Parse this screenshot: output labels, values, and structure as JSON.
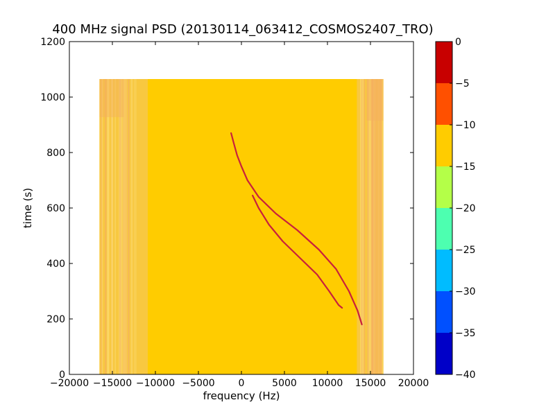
{
  "chart_data": {
    "type": "heatmap",
    "title": "400 MHz signal PSD (20130114_063412_COSMOS2407_TRO)",
    "xlabel": "frequency (Hz)",
    "ylabel": "time (s)",
    "xlim": [
      -20000,
      20000
    ],
    "ylim": [
      0,
      1200
    ],
    "xticks": [
      "−20000",
      "−15000",
      "−10000",
      "−5000",
      "0",
      "5000",
      "10000",
      "15000",
      "20000"
    ],
    "xtick_values": [
      -20000,
      -15000,
      -10000,
      -5000,
      0,
      5000,
      10000,
      15000,
      20000
    ],
    "yticks": [
      "0",
      "200",
      "400",
      "600",
      "800",
      "1000",
      "1200"
    ],
    "ytick_values": [
      0,
      200,
      400,
      600,
      800,
      1000,
      1200
    ],
    "data_extent": {
      "freq": [
        -16500,
        16500
      ],
      "time": [
        0,
        1065
      ]
    },
    "background_level_db": -12,
    "edge_level_db": -9,
    "signal_level_db": -2,
    "signal_tracks": [
      {
        "freq": [
          -1200,
          -900,
          -500,
          0,
          700,
          2000,
          4000,
          6500,
          9000,
          11000,
          12500,
          13500,
          14000
        ],
        "time": [
          870,
          835,
          790,
          750,
          700,
          640,
          580,
          520,
          450,
          380,
          300,
          230,
          180
        ]
      },
      {
        "freq": [
          1300,
          2000,
          3200,
          4800,
          6800,
          8800,
          10200,
          11300,
          11700
        ],
        "time": [
          645,
          600,
          540,
          480,
          420,
          360,
          300,
          250,
          240
        ]
      }
    ],
    "colorbar": {
      "min": -40,
      "max": 0,
      "ticks": [
        "0",
        "−5",
        "−10",
        "−15",
        "−20",
        "−25",
        "−30",
        "−35",
        "−40"
      ],
      "tick_values": [
        0,
        -5,
        -10,
        -15,
        -20,
        -25,
        -30,
        -35,
        -40
      ],
      "bands": [
        {
          "from": -40,
          "to": -35,
          "color": "#0000c8"
        },
        {
          "from": -35,
          "to": -30,
          "color": "#0050ff"
        },
        {
          "from": -30,
          "to": -25,
          "color": "#00bcff"
        },
        {
          "from": -25,
          "to": -20,
          "color": "#4dffb0"
        },
        {
          "from": -20,
          "to": -15,
          "color": "#b4ff48"
        },
        {
          "from": -15,
          "to": -10,
          "color": "#ffcc00"
        },
        {
          "from": -10,
          "to": -5,
          "color": "#ff5000"
        },
        {
          "from": -5,
          "to": 0,
          "color": "#c80000"
        }
      ]
    },
    "colors": {
      "background_fill": "#ffcc00",
      "edge_fill": "#f8c840",
      "edge_noise": "#f5b060",
      "signal": "#c8203c"
    }
  }
}
